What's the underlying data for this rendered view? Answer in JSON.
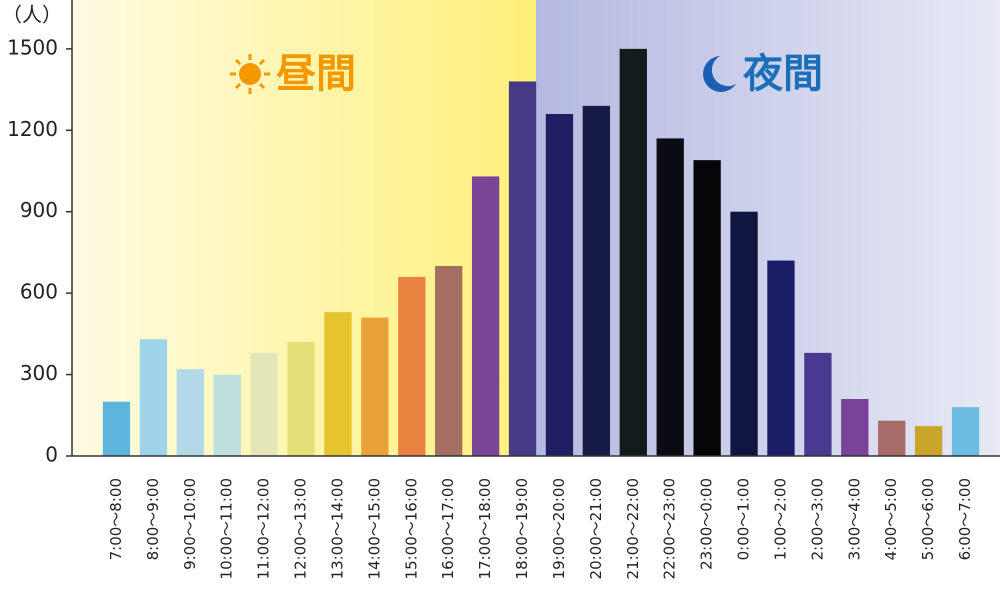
{
  "chart_data": {
    "type": "bar",
    "y_label": "（人）",
    "annotations": [
      "昼間",
      "夜間"
    ],
    "categories": [
      "7:00～8:00",
      "8:00～9:00",
      "9:00～10:00",
      "10:00～11:00",
      "11:00～12:00",
      "12:00～13:00",
      "13:00～14:00",
      "14:00～15:00",
      "15:00～16:00",
      "16:00～17:00",
      "17:00～18:00",
      "18:00～19:00",
      "19:00～20:00",
      "20:00～21:00",
      "21:00～22:00",
      "22:00～23:00",
      "23:00～0:00",
      "0:00～1:00",
      "1:00～2:00",
      "2:00～3:00",
      "3:00～4:00",
      "4:00～5:00",
      "5:00～6:00",
      "6:00～7:00"
    ],
    "values": [
      200,
      430,
      320,
      300,
      380,
      420,
      530,
      510,
      660,
      700,
      1030,
      1380,
      1260,
      1290,
      1500,
      1170,
      1090,
      900,
      720,
      380,
      210,
      130,
      110,
      180
    ],
    "colors": [
      "#5db5dd",
      "#9fd3ea",
      "#b3d9e8",
      "#bfe0dc",
      "#e4e6b8",
      "#e6e07a",
      "#e6c42e",
      "#e9a237",
      "#e8823e",
      "#a36f62",
      "#7a4596",
      "#463a87",
      "#201e63",
      "#151b44",
      "#131c1c",
      "#0b0b14",
      "#060608",
      "#111640",
      "#1c1d67",
      "#4a3a8f",
      "#7a4397",
      "#a86c68",
      "#c8a529",
      "#6dbde2"
    ],
    "ylim": [
      0,
      1680
    ],
    "yticks": [
      0,
      300,
      600,
      900,
      1200,
      1500
    ],
    "grid": false
  }
}
